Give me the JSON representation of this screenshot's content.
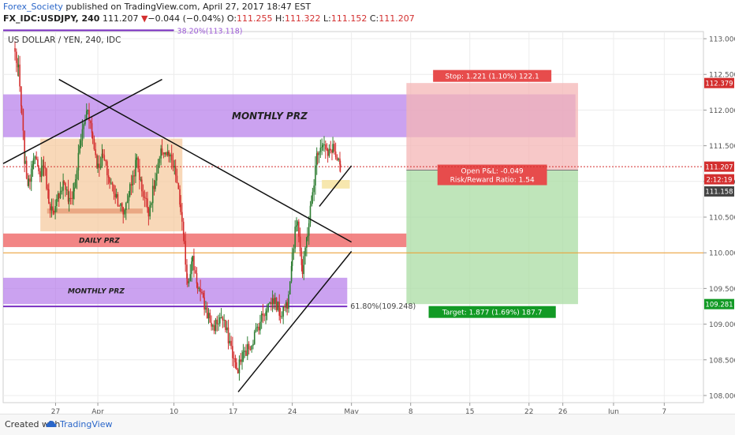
{
  "header": {
    "author": "Forex_Society",
    "published_text": " published on TradingView.com, April 27, 2017 18:47 EST",
    "symbol": "FX_IDC:USDJPY, 240",
    "last": "111.207",
    "change_arrow": "▼",
    "change": "−0.044 (−0.04%)",
    "o_label": "O:",
    "o_value": "111.255",
    "h_label": "H:",
    "h_value": "111.322",
    "l_label": "L:",
    "l_value": "111.152",
    "c_label": "C:",
    "c_value": "111.207"
  },
  "footer": {
    "created_with": "Created with",
    "brand": "TradingView"
  },
  "colors": {
    "up": "#2e7d32",
    "down": "#d32f2f",
    "purple_zone": "#b57bea",
    "orange_zone": "#f5c79a",
    "red_zone": "#f07070",
    "stop_zone": "#f4b6b6",
    "target_zone": "#a9dca3",
    "last_price": "#d32f2f",
    "green_label": "#129a25"
  },
  "chart_data": {
    "type": "candlestick",
    "title": "US DOLLAR / YEN, 240, IDC",
    "ylim": [
      107.9,
      113.1
    ],
    "y_ticks": [
      "113.000",
      "112.500",
      "112.000",
      "111.500",
      "111.000",
      "110.500",
      "110.000",
      "109.500",
      "109.000",
      "108.500",
      "108.000"
    ],
    "x_ticks": [
      {
        "label": "27",
        "day": -1
      },
      {
        "label": "Apr",
        "day": 4
      },
      {
        "label": "10",
        "day": 13
      },
      {
        "label": "17",
        "day": 20
      },
      {
        "label": "24",
        "day": 27
      },
      {
        "label": "May",
        "day": 34
      },
      {
        "label": "8",
        "day": 41
      },
      {
        "label": "15",
        "day": 48
      },
      {
        "label": "22",
        "day": 55
      },
      {
        "label": "26",
        "day": 59
      },
      {
        "label": "Jun",
        "day": 65
      },
      {
        "label": "7",
        "day": 71
      }
    ],
    "candle_path": [
      [
        -5.8,
        112.8
      ],
      [
        -5.4,
        112.55
      ],
      [
        -5.0,
        111.95
      ],
      [
        -4.6,
        111.2
      ],
      [
        -4.2,
        110.95
      ],
      [
        -3.6,
        111.4
      ],
      [
        -3.0,
        111.1
      ],
      [
        -2.4,
        111.25
      ],
      [
        -1.8,
        110.75
      ],
      [
        -1.2,
        110.5
      ],
      [
        -0.6,
        110.85
      ],
      [
        0.0,
        111.0
      ],
      [
        0.6,
        110.7
      ],
      [
        1.2,
        110.9
      ],
      [
        2.0,
        111.6
      ],
      [
        2.8,
        112.05
      ],
      [
        3.4,
        111.6
      ],
      [
        4.0,
        111.2
      ],
      [
        4.6,
        111.35
      ],
      [
        5.4,
        111.0
      ],
      [
        6.2,
        110.8
      ],
      [
        7.0,
        110.55
      ],
      [
        7.8,
        110.9
      ],
      [
        8.6,
        111.3
      ],
      [
        9.2,
        110.9
      ],
      [
        10.0,
        110.6
      ],
      [
        10.8,
        111.0
      ],
      [
        11.6,
        111.45
      ],
      [
        12.4,
        111.35
      ],
      [
        13.2,
        111.1
      ],
      [
        13.8,
        110.6
      ],
      [
        14.2,
        110.1
      ],
      [
        14.6,
        109.6
      ],
      [
        15.2,
        109.9
      ],
      [
        15.8,
        109.55
      ],
      [
        16.6,
        109.25
      ],
      [
        17.6,
        108.95
      ],
      [
        18.6,
        109.1
      ],
      [
        19.6,
        108.75
      ],
      [
        20.4,
        108.35
      ],
      [
        21.2,
        108.55
      ],
      [
        22.2,
        108.75
      ],
      [
        23.2,
        109.05
      ],
      [
        24.0,
        109.25
      ],
      [
        24.8,
        109.35
      ],
      [
        25.6,
        109.15
      ],
      [
        26.4,
        109.3
      ],
      [
        27.0,
        110.0
      ],
      [
        27.6,
        110.5
      ],
      [
        28.2,
        109.7
      ],
      [
        28.8,
        110.3
      ],
      [
        29.4,
        110.85
      ],
      [
        30.0,
        111.45
      ],
      [
        30.6,
        111.55
      ],
      [
        31.2,
        111.35
      ],
      [
        31.8,
        111.5
      ],
      [
        32.3,
        111.25
      ],
      [
        32.7,
        111.21
      ]
    ],
    "zones": [
      {
        "name": "monthly-prz-upper",
        "label": "MONTHLY PRZ",
        "x0": -7.2,
        "x1": 60.5,
        "y0": 111.62,
        "y1": 112.22,
        "color": "#b57bea"
      },
      {
        "name": "monthly-prz-lower",
        "label": "MONTHLY PRZ",
        "x0": -7.2,
        "x1": 33.5,
        "y0": 109.28,
        "y1": 109.65,
        "color": "#b57bea"
      },
      {
        "name": "consolidation-box",
        "label": "",
        "x0": -2.8,
        "x1": 14.0,
        "y0": 110.3,
        "y1": 111.6,
        "color": "#f5c79a"
      },
      {
        "name": "daily-prz",
        "label": "DAILY PRZ",
        "x0": -7.2,
        "x1": 40.5,
        "y0": 110.08,
        "y1": 110.27,
        "color": "#f07070"
      },
      {
        "name": "small-box-left",
        "label": "",
        "x0": -2.0,
        "x1": 9.3,
        "y0": 110.55,
        "y1": 110.62,
        "color": "#e8a07a"
      },
      {
        "name": "small-box-right",
        "label": "",
        "x0": 30.5,
        "x1": 33.8,
        "y0": 110.9,
        "y1": 111.02,
        "color": "#f6e3a0"
      }
    ],
    "trendlines": [
      {
        "name": "rising-trendline-upper",
        "x0": -7.2,
        "y0": 111.25,
        "x1": 11.6,
        "y1": 112.43
      },
      {
        "name": "falling-trendline",
        "x0": -0.6,
        "y0": 112.43,
        "x1": 34.0,
        "y1": 110.15
      },
      {
        "name": "rising-trendline-lower",
        "x0": 20.6,
        "y0": 108.05,
        "x1": 34.0,
        "y1": 110.02
      },
      {
        "name": "recent-support-line",
        "x0": 30.2,
        "y0": 110.65,
        "x1": 34.0,
        "y1": 111.22
      }
    ],
    "horizontal_lines": [
      {
        "name": "fib-61-line",
        "label": "61.80%(109.248)",
        "price": 109.248,
        "x0": -7.2,
        "x1": 33.5,
        "color": "#7a2fc2"
      },
      {
        "name": "fib-38-line",
        "label": "38.20%(113.118)",
        "price": 113.118,
        "x0": -7.2,
        "x1": 13.0,
        "color": "#7a2fc2"
      },
      {
        "name": "level-110-line",
        "label": "",
        "price": 110.0,
        "x0": -7.2,
        "x1": 80.0,
        "color": "#ef9b2a"
      },
      {
        "name": "last-price-line",
        "label": "",
        "price": 111.207,
        "x0": -7.2,
        "x1": 80.0,
        "color": "#d32f2f"
      }
    ],
    "position": {
      "x0": 40.5,
      "x1": 60.8,
      "entry": 111.158,
      "stop": 112.379,
      "target": 109.281,
      "stop_label": "Stop: 1.221 (1.10%) 122.1",
      "target_label": "Target: 1.877 (1.69%) 187.7",
      "pnl_label": "Open P&L: -0.049",
      "rr_label": "Risk/Reward Ratio: 1.54"
    },
    "price_badges": [
      {
        "name": "stop-price-badge",
        "text": "112.379",
        "price": 112.379,
        "color": "#d32f2f"
      },
      {
        "name": "last-price-badge",
        "text": "111.207",
        "price": 111.207,
        "color": "#d32f2f"
      },
      {
        "name": "countdown-badge",
        "text": "2:12:19",
        "price": 111.03,
        "color": "#d32f2f"
      },
      {
        "name": "entry-price-badge",
        "text": "111.158",
        "price": 110.86,
        "color": "#444444"
      },
      {
        "name": "target-price-badge",
        "text": "109.281",
        "price": 109.281,
        "color": "#129a25"
      }
    ]
  }
}
